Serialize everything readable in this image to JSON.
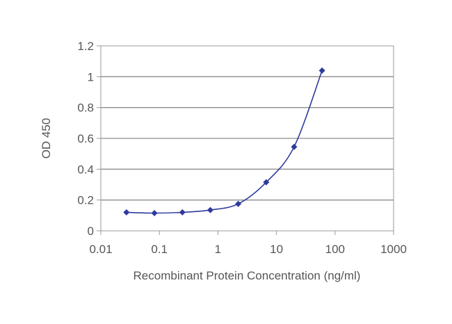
{
  "chart_data": {
    "type": "line",
    "xlabel": "Recombinant Protein Concentration (ng/ml)",
    "ylabel": "OD 450",
    "xscale": "log",
    "xlim": [
      0.01,
      1000
    ],
    "ylim": [
      0,
      1.2
    ],
    "x_ticks": [
      "0.01",
      "0.1",
      "1",
      "10",
      "100",
      "1000"
    ],
    "y_ticks": [
      "0",
      "0.2",
      "0.4",
      "0.6",
      "0.8",
      "1",
      "1.2"
    ],
    "grid": "horizontal",
    "legend": "none",
    "series": [
      {
        "x": [
          0.0274,
          0.0823,
          0.247,
          0.741,
          2.22,
          6.67,
          20,
          60
        ],
        "y": [
          0.12,
          0.115,
          0.12,
          0.135,
          0.175,
          0.315,
          0.545,
          1.04
        ],
        "color": "#2e3a9c"
      }
    ]
  }
}
